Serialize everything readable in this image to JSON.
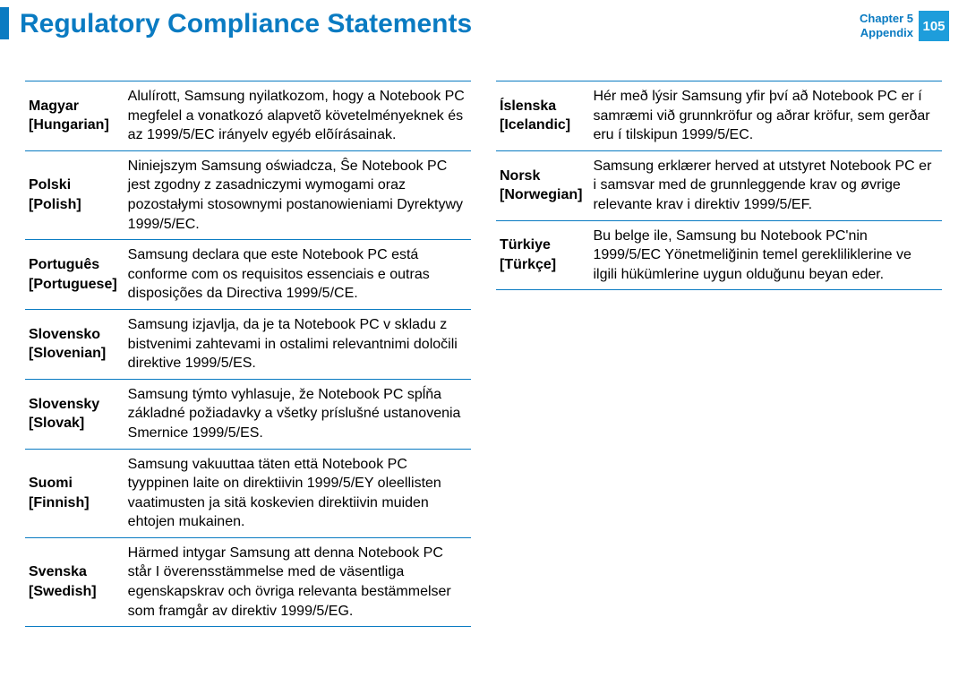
{
  "header": {
    "title": "Regulatory Compliance Statements",
    "chapter_line1": "Chapter 5",
    "chapter_line2": "Appendix",
    "page_number": "105",
    "accent_color": "#0a7bc2",
    "page_badge_bg": "#1e9ddb"
  },
  "left_table": {
    "rows": [
      {
        "lang": "Magyar",
        "en": "[Hungarian]",
        "text": "Alulírott, Samsung nyilatkozom, hogy a Notebook PC megfelel a vonatkozó alapvetõ követelményeknek és az 1999/5/EC irányelv egyéb elõírásainak."
      },
      {
        "lang": "Polski",
        "en": "[Polish]",
        "text": "Niniejszym Samsung oświadcza, Ŝe Notebook PC jest zgodny z zasadniczymi wymogami oraz pozostałymi stosownymi postanowieniami Dyrektywy 1999/5/EC."
      },
      {
        "lang": "Português",
        "en": "[Portuguese]",
        "text": "Samsung declara que este Notebook PC está conforme com os requisitos essenciais e outras disposições da Directiva 1999/5/CE."
      },
      {
        "lang": "Slovensko",
        "en": "[Slovenian]",
        "text": "Samsung izjavlja, da je ta Notebook PC v skladu z bistvenimi zahtevami in ostalimi relevantnimi določili direktive 1999/5/ES."
      },
      {
        "lang": "Slovensky",
        "en": "[Slovak]",
        "text": "Samsung týmto vyhlasuje, že Notebook PC spĺňa základné požiadavky a všetky príslušné ustanovenia Smernice 1999/5/ES."
      },
      {
        "lang": "Suomi",
        "en": "[Finnish]",
        "text": "Samsung vakuuttaa täten että Notebook PC tyyppinen laite on direktiivin 1999/5/EY oleellisten vaatimusten ja sitä koskevien direktiivin muiden ehtojen mukainen."
      },
      {
        "lang": "Svenska",
        "en": "[Swedish]",
        "text": "Härmed intygar Samsung att denna Notebook PC står I överensstämmelse med de väsentliga egenskapskrav och övriga relevanta bestämmelser som framgår av direktiv 1999/5/EG."
      }
    ]
  },
  "right_table": {
    "rows": [
      {
        "lang": "Íslenska",
        "en": "[Icelandic]",
        "text": "Hér með lýsir Samsung yfir því að Notebook PC er í samræmi við grunnkröfur og aðrar kröfur, sem gerðar eru í tilskipun 1999/5/EC."
      },
      {
        "lang": "Norsk",
        "en": "[Norwegian]",
        "text": "Samsung erklærer herved at utstyret Notebook PC er i samsvar med de grunnleggende krav og øvrige relevante krav i direktiv 1999/5/EF."
      },
      {
        "lang": "Türkiye",
        "en": "[Türkçe]",
        "text": "Bu belge ile, Samsung bu Notebook PC'nin 1999/5/EC Yönetmeliğinin temel gerekliliklerine ve ilgili hükümlerine uygun olduğunu beyan eder."
      }
    ]
  }
}
